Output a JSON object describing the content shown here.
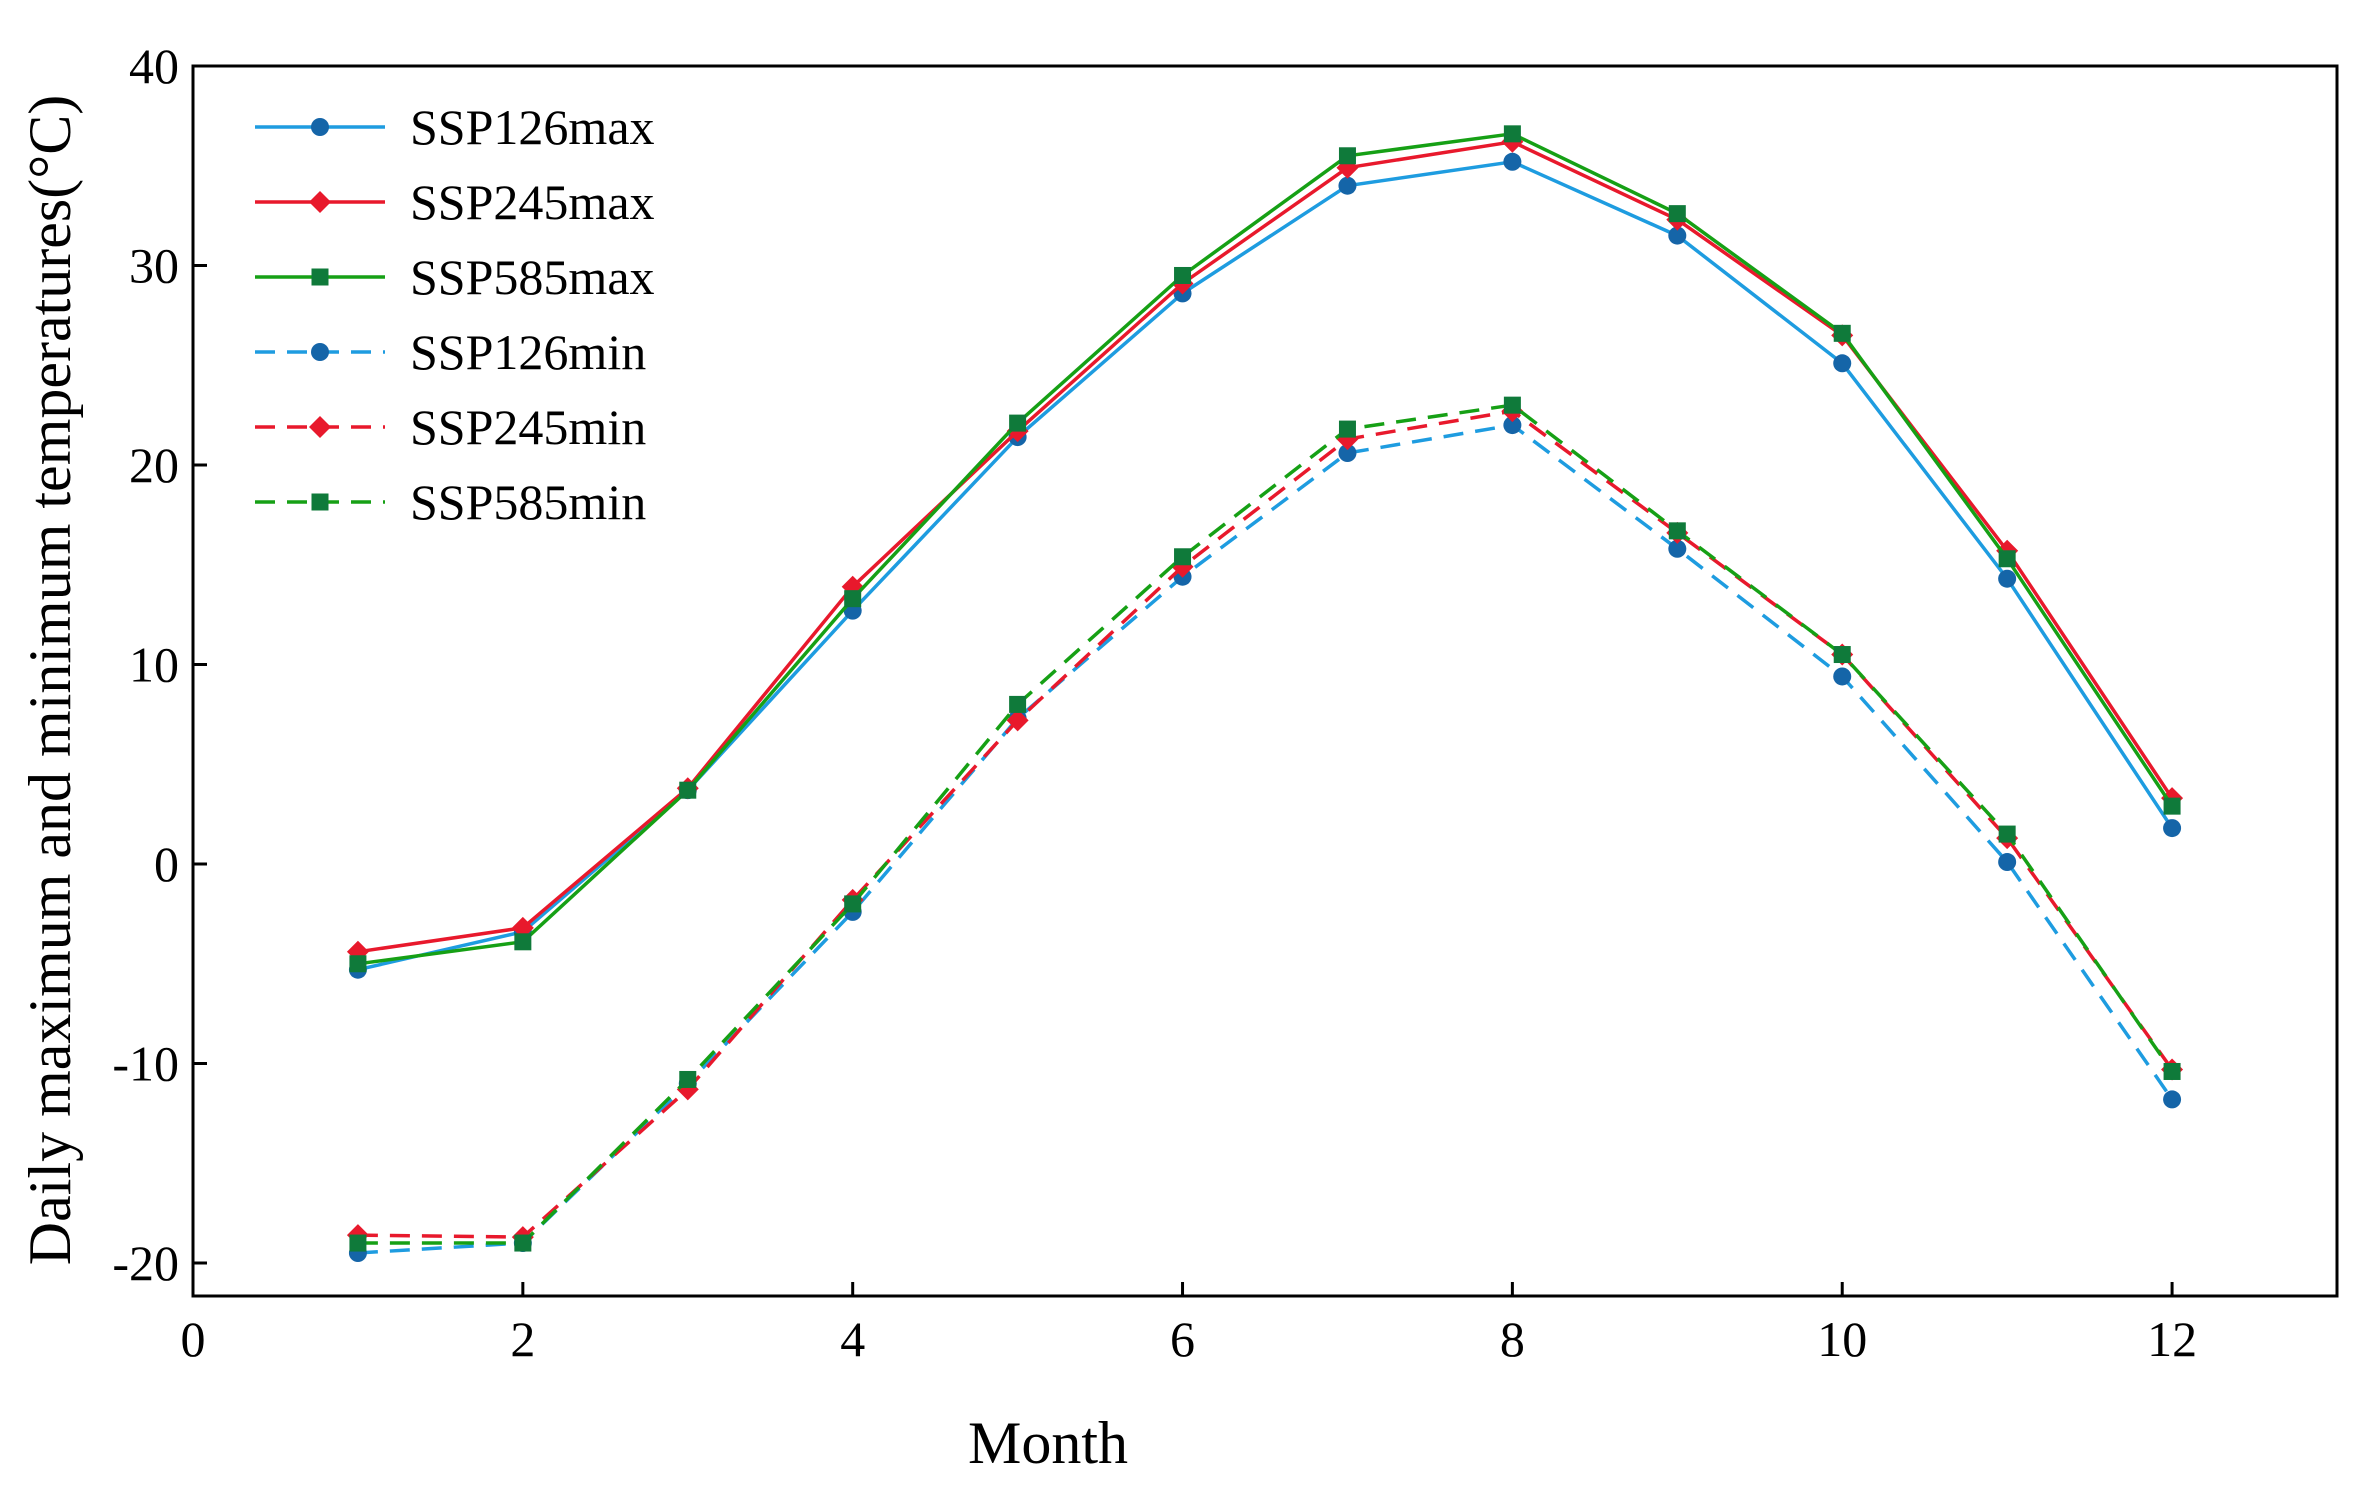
{
  "chart_data": {
    "type": "line",
    "title": "",
    "xlabel": "Month",
    "ylabel": "Daily  maximum and minimum temperatures(°C)",
    "xlim": [
      0,
      13
    ],
    "ylim": [
      -22,
      40
    ],
    "xticks": [
      0,
      2,
      4,
      6,
      8,
      10,
      12
    ],
    "yticks": [
      -20,
      -10,
      0,
      10,
      20,
      30,
      40
    ],
    "grid": false,
    "legend_position": "top-left",
    "x": [
      1,
      2,
      3,
      4,
      5,
      6,
      7,
      8,
      9,
      10,
      11,
      12
    ],
    "series": [
      {
        "name": "SSP126max",
        "color": "#1e9ce0",
        "marker_color": "#1565a8",
        "marker": "circle",
        "dash": "solid",
        "values": [
          -5.3,
          -3.4,
          3.7,
          12.7,
          21.4,
          28.6,
          34.0,
          35.2,
          31.5,
          25.1,
          14.3,
          1.8
        ]
      },
      {
        "name": "SSP245max",
        "color": "#e8192c",
        "marker_color": "#e8192c",
        "marker": "diamond",
        "dash": "solid",
        "values": [
          -4.4,
          -3.2,
          3.8,
          13.9,
          21.7,
          29.1,
          34.9,
          36.2,
          32.3,
          26.5,
          15.7,
          3.3
        ]
      },
      {
        "name": "SSP585max",
        "color": "#16a015",
        "marker_color": "#0f7a3a",
        "marker": "square",
        "dash": "solid",
        "values": [
          -5.0,
          -3.9,
          3.7,
          13.3,
          22.1,
          29.5,
          35.5,
          36.6,
          32.6,
          26.6,
          15.3,
          2.9
        ]
      },
      {
        "name": "SSP126min",
        "color": "#1e9ce0",
        "marker_color": "#1565a8",
        "marker": "circle",
        "dash": "dashed",
        "values": [
          -19.5,
          -19.0,
          -11.0,
          -2.4,
          7.3,
          14.4,
          20.6,
          22.0,
          15.8,
          9.4,
          0.1,
          -11.8
        ]
      },
      {
        "name": "SSP245min",
        "color": "#e8192c",
        "marker_color": "#e8192c",
        "marker": "diamond",
        "dash": "dashed",
        "values": [
          -18.6,
          -18.7,
          -11.3,
          -1.8,
          7.2,
          14.9,
          21.3,
          22.7,
          16.6,
          10.5,
          1.3,
          -10.3
        ]
      },
      {
        "name": "SSP585min",
        "color": "#16a015",
        "marker_color": "#0f7a3a",
        "marker": "square",
        "dash": "dashed",
        "values": [
          -19.0,
          -19.0,
          -10.8,
          -2.0,
          8.0,
          15.4,
          21.8,
          23.0,
          16.7,
          10.5,
          1.5,
          -10.4
        ]
      }
    ]
  }
}
